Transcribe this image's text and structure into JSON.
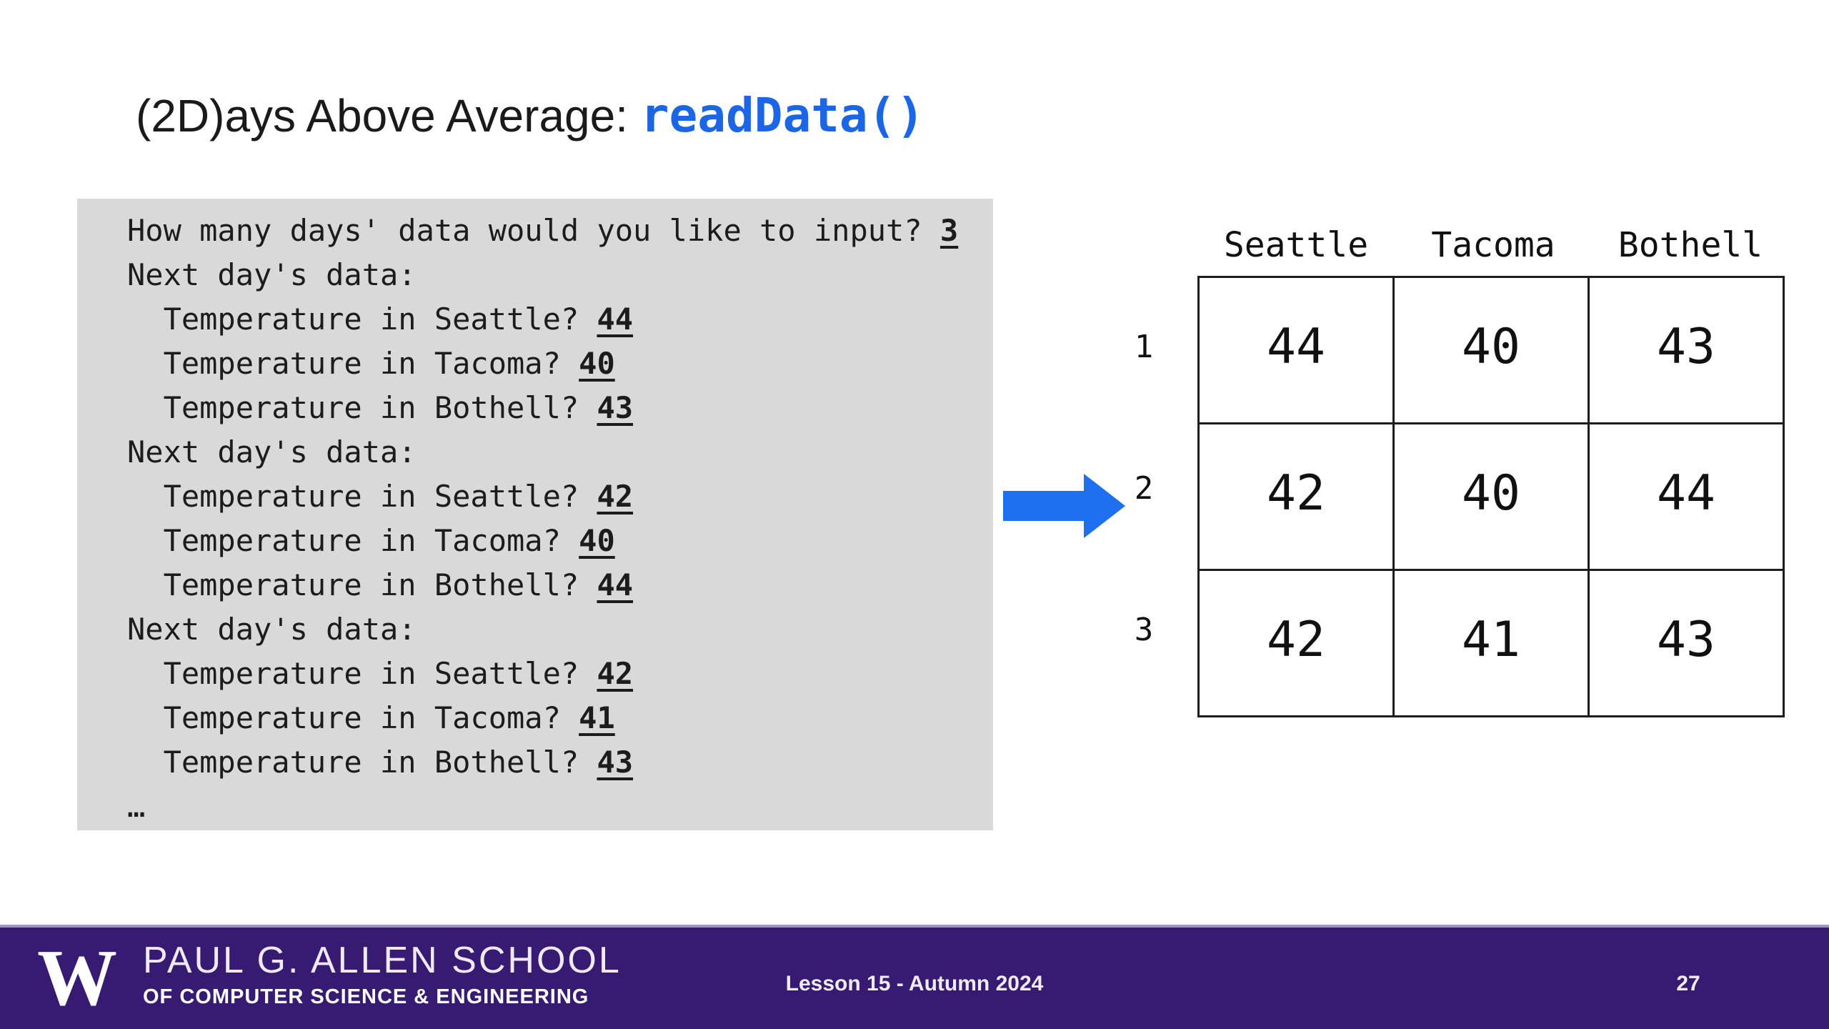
{
  "slide": {
    "title": {
      "text": "(2D)ays Above Average: ",
      "code": "readData()"
    },
    "console": {
      "lines": [
        {
          "text": "How many days' data would you like to input? ",
          "input": "3"
        },
        {
          "text": "Next day's data:",
          "input": ""
        },
        {
          "text": "  Temperature in Seattle? ",
          "input": "44"
        },
        {
          "text": "  Temperature in Tacoma? ",
          "input": "40"
        },
        {
          "text": "  Temperature in Bothell? ",
          "input": "43"
        },
        {
          "text": "Next day's data:",
          "input": ""
        },
        {
          "text": "  Temperature in Seattle? ",
          "input": "42"
        },
        {
          "text": "  Temperature in Tacoma? ",
          "input": "40"
        },
        {
          "text": "  Temperature in Bothell? ",
          "input": "44"
        },
        {
          "text": "Next day's data:",
          "input": ""
        },
        {
          "text": "  Temperature in Seattle? ",
          "input": "42"
        },
        {
          "text": "  Temperature in Tacoma? ",
          "input": "41"
        },
        {
          "text": "  Temperature in Bothell? ",
          "input": "43"
        },
        {
          "text": "…",
          "input": ""
        }
      ]
    },
    "visualization": {
      "headers": [
        "Seattle",
        "Tacoma",
        "Bothell"
      ],
      "row_labels": [
        "1",
        "2",
        "3"
      ],
      "rows": [
        [
          "44",
          "40",
          "43"
        ],
        [
          "42",
          "40",
          "44"
        ],
        [
          "42",
          "41",
          "43"
        ]
      ],
      "arrow_points_to_row": "2"
    },
    "footer": {
      "logo": "W",
      "school_name": "PAUL G. ALLEN SCHOOL",
      "school_sub": "OF COMPUTER SCIENCE & ENGINEERING",
      "lesson_label": "Lesson 15 - Autumn 2024",
      "page_number": "27"
    }
  },
  "chart_data": {
    "type": "table",
    "columns": [
      "Seattle",
      "Tacoma",
      "Bothell"
    ],
    "row_labels": [
      "1",
      "2",
      "3"
    ],
    "values": [
      [
        44,
        40,
        43
      ],
      [
        42,
        40,
        44
      ],
      [
        42,
        41,
        43
      ]
    ]
  },
  "colors": {
    "code_blue": "#1a66e6",
    "arrow_blue": "#1f6ff2",
    "console_background": "#d9d9d9",
    "footer_purple": "#371a72",
    "footer_divider": "#a293c6",
    "text_dark": "#111111",
    "footer_text": "#ffffff"
  },
  "icons": {
    "arrow": "right-arrow-icon"
  }
}
